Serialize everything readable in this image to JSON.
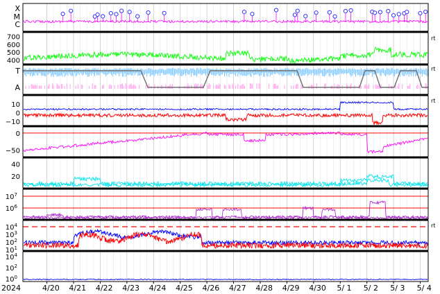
{
  "chart_data": {
    "type": "line",
    "layout": "nine stacked time-series panels sharing one x axis",
    "x_start_label": "2024",
    "dates": [
      "4/20",
      "4/21",
      "4/22",
      "4/23",
      "4/24",
      "4/25",
      "4/26",
      "4/27",
      "4/28",
      "4/29",
      "4/30",
      "5/ 1",
      "5/ 2",
      "5/ 3",
      "5/ 4"
    ],
    "grid": true,
    "colors": {
      "magenta": "#ff00ff",
      "green": "#00ff00",
      "lightblue": "#88ccff",
      "pink": "#ffaaee",
      "gray": "#707070",
      "blue": "#0000ff",
      "red": "#ff0000",
      "cyan": "#00e5ee",
      "purple": "#aa22cc",
      "darkblue": "#0000ff",
      "frame": "#000000",
      "grid": "#c8c8c8"
    },
    "panels": [
      {
        "id": "xray",
        "y_ticks": [
          "X",
          "M",
          "C"
        ],
        "series": [
          {
            "color": "magenta",
            "baseline_level": "C",
            "event_markers": "circles"
          }
        ],
        "event_day_positions": [
          0.6,
          0.9,
          1.8,
          1.9,
          2.1,
          2.4,
          2.6,
          2.8,
          3.1,
          3.4,
          3.8,
          4.4,
          7.4,
          7.7,
          8.6,
          9.3,
          9.4,
          9.7,
          10.1,
          10.6,
          10.8,
          11.2,
          11.4,
          12.2,
          12.3,
          12.5,
          12.8,
          13.0,
          13.2,
          13.4,
          13.5,
          14.0,
          14.2
        ]
      },
      {
        "id": "solar-wind-speed",
        "y_ticks": [
          "700",
          "600",
          "500",
          "400"
        ],
        "ylim": [
          350,
          750
        ],
        "series": [
          {
            "color": "green",
            "approx_level": {
              "start": 450,
              "4/27": 480,
              "5/ 2": 470,
              "end": 430
            }
          }
        ],
        "right_tick": "rt"
      },
      {
        "id": "sector",
        "y_ticks": [
          "T",
          "A"
        ],
        "series": [
          {
            "color": "gray",
            "kind": "step"
          },
          {
            "color": "lightblue",
            "level": "T"
          },
          {
            "color": "pink",
            "level": "A"
          }
        ],
        "right_tick": "rt"
      },
      {
        "id": "imf",
        "y_ticks": [
          "10",
          "0",
          "−10"
        ],
        "ylim": [
          -15,
          15
        ],
        "series": [
          {
            "color": "blue",
            "approx": "+3 to +5"
          },
          {
            "color": "red",
            "approx": "−2 to −5, dips to −12 near 5/ 2"
          }
        ],
        "right_tick": "rt"
      },
      {
        "id": "angle",
        "y_ticks": [
          "0",
          "−50"
        ],
        "ylim": [
          -70,
          10
        ],
        "series": [
          {
            "color": "magenta",
            "approx": "−45 rising to 0, dip near 5/ 2"
          }
        ],
        "ref_line": {
          "color": "red",
          "value": 0
        }
      },
      {
        "id": "density",
        "y_ticks": [
          "40",
          "20"
        ],
        "ylim": [
          0,
          50
        ],
        "series": [
          {
            "color": "cyan",
            "approx": "5 to 25"
          }
        ]
      },
      {
        "id": "proton-flux",
        "y_ticks": [
          "10^7",
          "10^6"
        ],
        "log": true,
        "series": [
          {
            "color": "purple",
            "approx": "below 10^5 with bumps near 4/26, 4/30, 5/ 2"
          }
        ],
        "ref_lines": [
          {
            "color": "red",
            "value": "10^7"
          },
          {
            "color": "red",
            "value": "10^6"
          }
        ]
      },
      {
        "id": "electron-flux",
        "y_ticks": [
          "10^4",
          "10^3",
          "10^2",
          "10^1"
        ],
        "log": true,
        "series": [
          {
            "color": "blue",
            "approx": "10^2 to 10^3"
          },
          {
            "color": "red",
            "approx": "10^1 to 10^3"
          }
        ],
        "ref_line": {
          "color": "red",
          "style": "dashed",
          "value": "10^4"
        },
        "right_tick": "rt"
      },
      {
        "id": "bottom",
        "y_ticks": [
          "10^4",
          "10^2",
          "10^0"
        ],
        "log": true,
        "series": [
          {
            "color": "darkblue",
            "approx": "flat near 10^0"
          }
        ]
      }
    ]
  }
}
